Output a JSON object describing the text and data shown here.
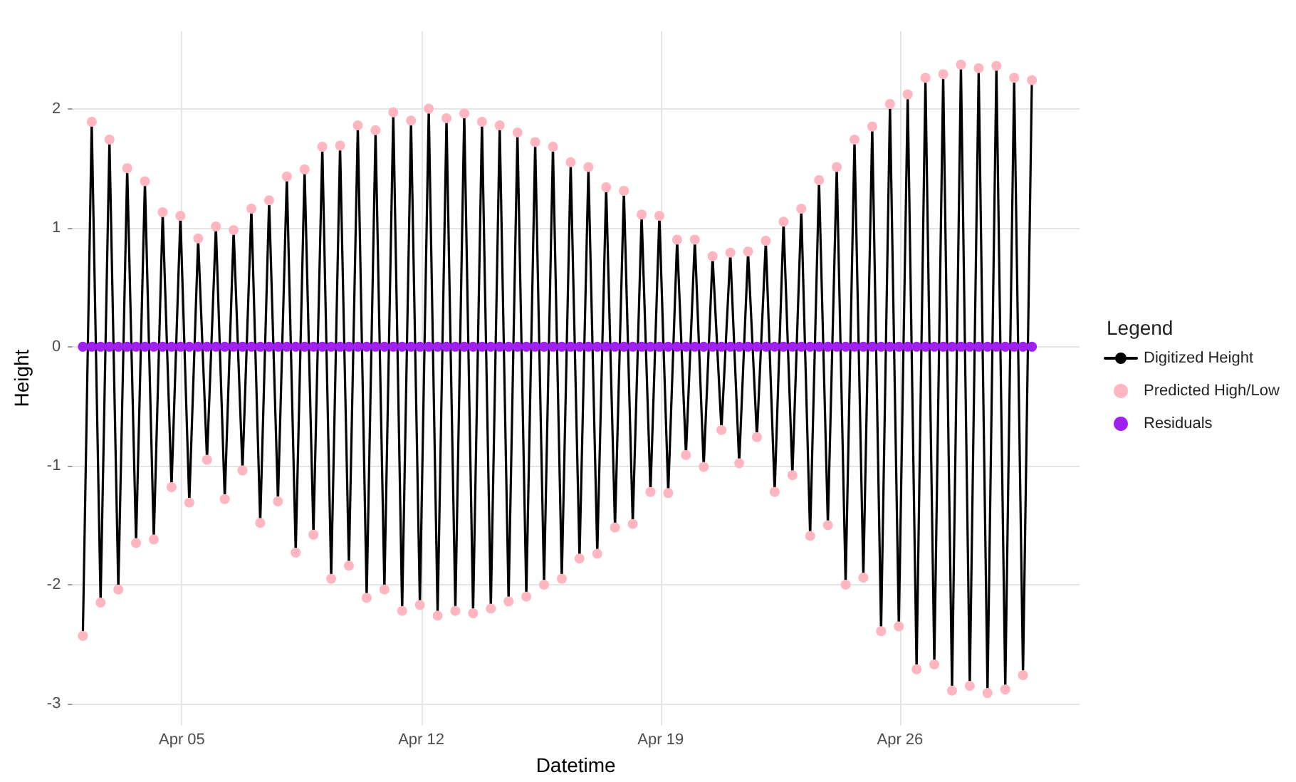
{
  "chart_data": {
    "type": "line",
    "xlabel": "Datetime",
    "ylabel": "Height",
    "legend_title": "Legend",
    "legend": "right",
    "grid": true,
    "marker": "circle",
    "xlim": [
      "--04-01T19:00",
      "--05-01T06:00"
    ],
    "xticks": [
      {
        "value": "--04-05",
        "label": "Apr 05"
      },
      {
        "value": "--04-12",
        "label": "Apr 12"
      },
      {
        "value": "--04-19",
        "label": "Apr 19"
      },
      {
        "value": "--04-26",
        "label": "Apr 26"
      }
    ],
    "ylim": [
      -3.18,
      2.65
    ],
    "yticks": [
      -3,
      -2,
      -1,
      0,
      1,
      2
    ],
    "x": [
      "--04-02T02:29",
      "--04-02T08:43",
      "--04-02T14:56",
      "--04-02T21:10",
      "--04-03T03:23",
      "--04-03T09:37",
      "--04-03T15:50",
      "--04-03T22:04",
      "--04-04T04:17",
      "--04-04T10:31",
      "--04-04T16:44",
      "--04-04T22:58",
      "--04-05T05:11",
      "--04-05T11:25",
      "--04-05T17:38",
      "--04-05T23:52",
      "--04-06T06:05",
      "--04-06T12:19",
      "--04-06T18:32",
      "--04-07T00:46",
      "--04-07T06:59",
      "--04-07T13:13",
      "--04-07T19:26",
      "--04-08T01:40",
      "--04-08T07:53",
      "--04-08T14:07",
      "--04-08T20:20",
      "--04-09T02:34",
      "--04-09T08:47",
      "--04-09T15:01",
      "--04-09T21:14",
      "--04-10T03:28",
      "--04-10T09:41",
      "--04-10T15:55",
      "--04-10T22:08",
      "--04-11T04:22",
      "--04-11T10:35",
      "--04-11T16:49",
      "--04-11T23:02",
      "--04-12T05:16",
      "--04-12T11:29",
      "--04-12T17:43",
      "--04-12T23:56",
      "--04-13T06:10",
      "--04-13T12:23",
      "--04-13T18:37",
      "--04-14T00:50",
      "--04-14T07:04",
      "--04-14T13:17",
      "--04-14T19:31",
      "--04-15T01:44",
      "--04-15T07:58",
      "--04-15T14:11",
      "--04-15T20:25",
      "--04-16T02:38",
      "--04-16T08:52",
      "--04-16T15:05",
      "--04-16T21:19",
      "--04-17T03:32",
      "--04-17T09:46",
      "--04-17T15:59",
      "--04-17T22:13",
      "--04-18T04:26",
      "--04-18T10:40",
      "--04-18T16:53",
      "--04-18T23:07",
      "--04-19T05:20",
      "--04-19T11:34",
      "--04-19T17:47",
      "--04-20T00:01",
      "--04-20T06:14",
      "--04-20T12:28",
      "--04-20T18:41",
      "--04-21T00:55",
      "--04-21T07:08",
      "--04-21T13:22",
      "--04-21T19:35",
      "--04-22T01:49",
      "--04-22T08:02",
      "--04-22T14:16",
      "--04-22T20:29",
      "--04-23T02:43",
      "--04-23T08:56",
      "--04-23T15:10",
      "--04-23T21:23",
      "--04-24T03:37",
      "--04-24T09:50",
      "--04-24T16:04",
      "--04-24T22:17",
      "--04-25T04:31",
      "--04-25T10:44",
      "--04-25T16:58",
      "--04-25T23:11",
      "--04-26T05:25",
      "--04-26T11:38",
      "--04-26T17:52",
      "--04-27T00:05",
      "--04-27T06:19",
      "--04-27T12:32",
      "--04-27T18:46",
      "--04-28T00:59",
      "--04-28T07:13",
      "--04-28T13:26",
      "--04-28T19:40",
      "--04-29T01:53",
      "--04-29T08:07",
      "--04-29T14:20",
      "--04-29T20:34"
    ],
    "series": [
      {
        "name": "Digitized Height",
        "color": "#000000",
        "values": [
          -2.43,
          1.89,
          -2.15,
          1.74,
          -2.04,
          1.5,
          -1.65,
          1.39,
          -1.62,
          1.13,
          -1.18,
          1.1,
          -1.31,
          0.91,
          -0.95,
          1.01,
          -1.28,
          0.98,
          -1.04,
          1.16,
          -1.48,
          1.23,
          -1.3,
          1.43,
          -1.73,
          1.49,
          -1.58,
          1.68,
          -1.95,
          1.69,
          -1.84,
          1.86,
          -2.11,
          1.82,
          -2.04,
          1.97,
          -2.22,
          1.9,
          -2.17,
          2.0,
          -2.26,
          1.92,
          -2.22,
          1.96,
          -2.24,
          1.89,
          -2.2,
          1.86,
          -2.14,
          1.8,
          -2.1,
          1.72,
          -2.0,
          1.68,
          -1.95,
          1.55,
          -1.78,
          1.51,
          -1.74,
          1.34,
          -1.52,
          1.31,
          -1.49,
          1.11,
          -1.22,
          1.1,
          -1.23,
          0.9,
          -0.91,
          0.9,
          -1.01,
          0.76,
          -0.7,
          0.79,
          -0.98,
          0.8,
          -0.76,
          0.89,
          -1.22,
          1.05,
          -1.08,
          1.16,
          -1.59,
          1.4,
          -1.5,
          1.51,
          -2.0,
          1.74,
          -1.94,
          1.85,
          -2.39,
          2.04,
          -2.35,
          2.12,
          -2.71,
          2.26,
          -2.67,
          2.29,
          -2.89,
          2.37,
          -2.85,
          2.34,
          -2.91,
          2.36,
          -2.88,
          2.26,
          -2.76,
          2.24
        ]
      },
      {
        "name": "Predicted High/Low",
        "type": "scatter",
        "color": "#ffb6c1",
        "values": [
          -2.43,
          1.89,
          -2.15,
          1.74,
          -2.04,
          1.5,
          -1.65,
          1.39,
          -1.62,
          1.13,
          -1.18,
          1.1,
          -1.31,
          0.91,
          -0.95,
          1.01,
          -1.28,
          0.98,
          -1.04,
          1.16,
          -1.48,
          1.23,
          -1.3,
          1.43,
          -1.73,
          1.49,
          -1.58,
          1.68,
          -1.95,
          1.69,
          -1.84,
          1.86,
          -2.11,
          1.82,
          -2.04,
          1.97,
          -2.22,
          1.9,
          -2.17,
          2.0,
          -2.26,
          1.92,
          -2.22,
          1.96,
          -2.24,
          1.89,
          -2.2,
          1.86,
          -2.14,
          1.8,
          -2.1,
          1.72,
          -2.0,
          1.68,
          -1.95,
          1.55,
          -1.78,
          1.51,
          -1.74,
          1.34,
          -1.52,
          1.31,
          -1.49,
          1.11,
          -1.22,
          1.1,
          -1.23,
          0.9,
          -0.91,
          0.9,
          -1.01,
          0.76,
          -0.7,
          0.79,
          -0.98,
          0.8,
          -0.76,
          0.89,
          -1.22,
          1.05,
          -1.08,
          1.16,
          -1.59,
          1.4,
          -1.5,
          1.51,
          -2.0,
          1.74,
          -1.94,
          1.85,
          -2.39,
          2.04,
          -2.35,
          2.12,
          -2.71,
          2.26,
          -2.67,
          2.29,
          -2.89,
          2.37,
          -2.85,
          2.34,
          -2.91,
          2.36,
          -2.88,
          2.26,
          -2.76,
          2.24
        ]
      },
      {
        "name": "Residuals",
        "type": "scatter",
        "color": "#a020f0",
        "values": [
          0,
          0,
          0,
          0,
          0,
          0,
          0,
          0,
          0,
          0,
          0,
          0,
          0,
          0,
          0,
          0,
          0,
          0,
          0,
          0,
          0,
          0,
          0,
          0,
          0,
          0,
          0,
          0,
          0,
          0,
          0,
          0,
          0,
          0,
          0,
          0,
          0,
          0,
          0,
          0,
          0,
          0,
          0,
          0,
          0,
          0,
          0,
          0,
          0,
          0,
          0,
          0,
          0,
          0,
          0,
          0,
          0,
          0,
          0,
          0,
          0,
          0,
          0,
          0,
          0,
          0,
          0,
          0,
          0,
          0,
          0,
          0,
          0,
          0,
          0,
          0,
          0,
          0,
          0,
          0,
          0,
          0,
          0,
          0,
          0,
          0,
          0,
          0,
          0,
          0,
          0,
          0,
          0,
          0,
          0,
          0,
          0,
          0,
          0,
          0,
          0,
          0,
          0,
          0,
          0,
          0,
          0,
          0
        ]
      }
    ]
  }
}
